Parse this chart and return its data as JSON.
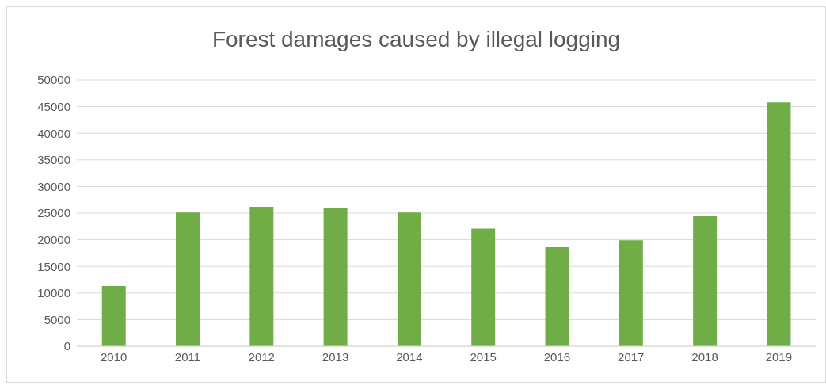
{
  "chart_data": {
    "type": "bar",
    "title": "Forest damages caused by illegal logging",
    "categories": [
      "2010",
      "2011",
      "2012",
      "2013",
      "2014",
      "2015",
      "2016",
      "2017",
      "2018",
      "2019"
    ],
    "values": [
      11300,
      25100,
      26200,
      25900,
      25100,
      22100,
      18600,
      19900,
      24400,
      45800
    ],
    "color": "#70ad47",
    "ylim": [
      0,
      50000
    ],
    "yticks": [
      0,
      5000,
      10000,
      15000,
      20000,
      25000,
      30000,
      35000,
      40000,
      45000,
      50000
    ],
    "grid": "y"
  }
}
